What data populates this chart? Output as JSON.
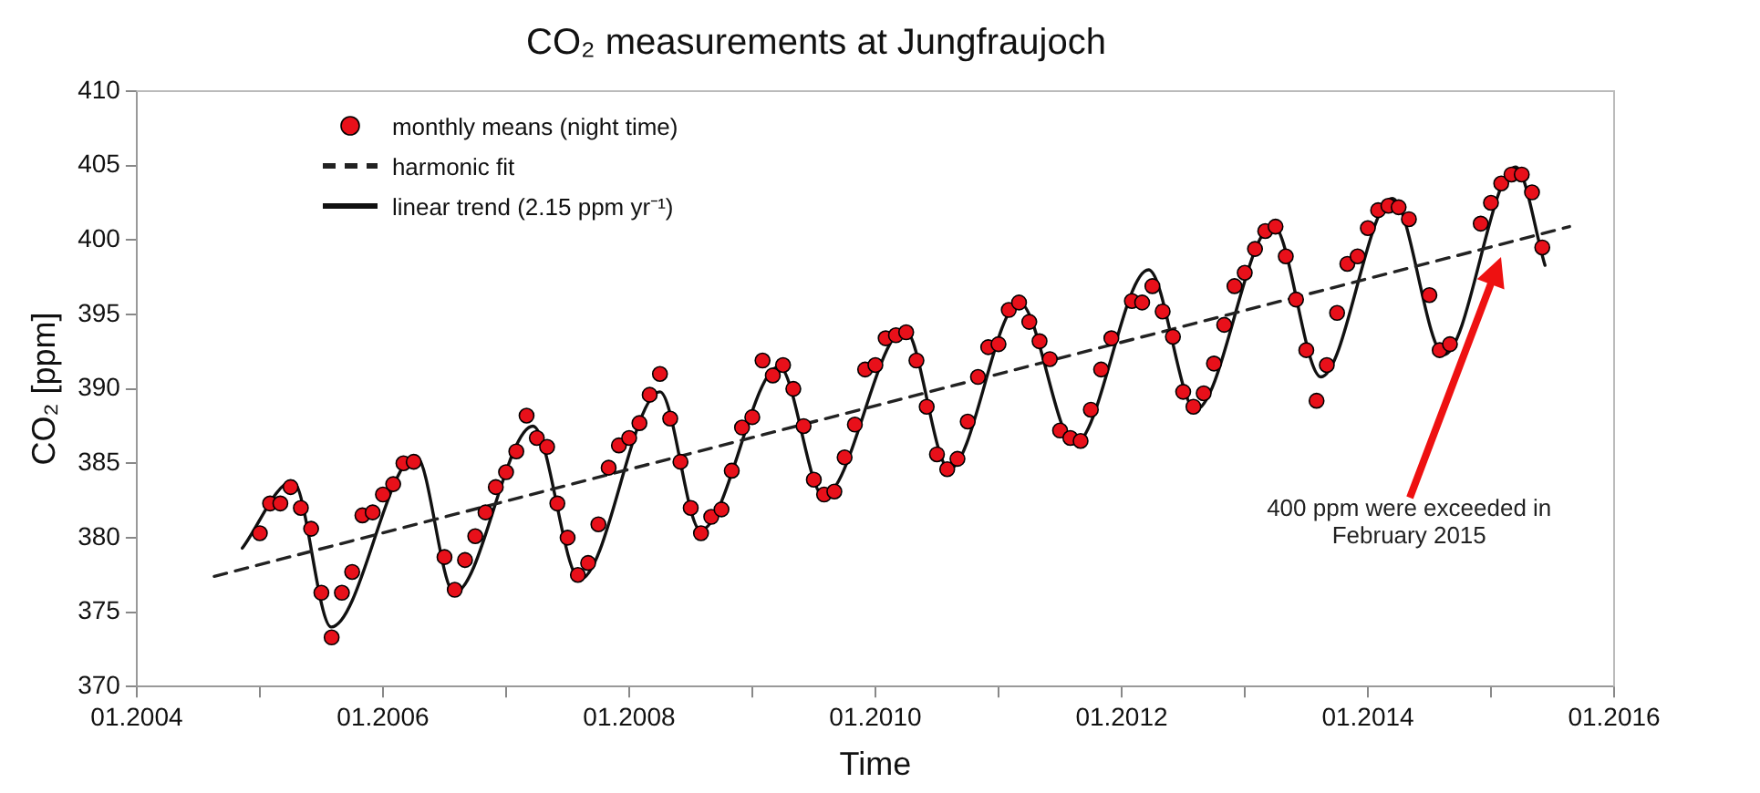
{
  "chart_data": {
    "type": "scatter",
    "title": "CO₂ measurements at Jungfraujoch",
    "xlabel": "Time",
    "ylabel": "CO₂ [ppm]",
    "xlim": [
      "2004-01",
      "2016-01"
    ],
    "xticks": [
      {
        "value": "2004-01",
        "label": "01.2004"
      },
      {
        "value": "2005-01",
        "label": null
      },
      {
        "value": "2006-01",
        "label": "01.2006"
      },
      {
        "value": "2007-01",
        "label": null
      },
      {
        "value": "2008-01",
        "label": "01.2008"
      },
      {
        "value": "2009-01",
        "label": null
      },
      {
        "value": "2010-01",
        "label": "01.2010"
      },
      {
        "value": "2011-01",
        "label": null
      },
      {
        "value": "2012-01",
        "label": "01.2012"
      },
      {
        "value": "2013-01",
        "label": null
      },
      {
        "value": "2014-01",
        "label": "01.2014"
      },
      {
        "value": "2015-01",
        "label": null
      },
      {
        "value": "2016-01",
        "label": "01.2016"
      }
    ],
    "ylim": [
      370,
      410
    ],
    "yticks": [
      370,
      375,
      380,
      385,
      390,
      395,
      400,
      405,
      410
    ],
    "legend": "top left",
    "series": [
      {
        "name": "monthly means (night time)",
        "marker": "circle",
        "color": "#e8101a",
        "x": [
          "2005-01",
          "2005-02",
          "2005-03",
          "2005-04",
          "2005-05",
          "2005-06",
          "2005-07",
          "2005-08",
          "2005-09",
          "2005-10",
          "2005-11",
          "2005-12",
          "2006-01",
          "2006-02",
          "2006-03",
          "2006-04",
          "2006-07",
          "2006-08",
          "2006-09",
          "2006-10",
          "2006-11",
          "2006-12",
          "2007-01",
          "2007-02",
          "2007-03",
          "2007-04",
          "2007-05",
          "2007-06",
          "2007-07",
          "2007-08",
          "2007-09",
          "2007-10",
          "2007-11",
          "2007-12",
          "2008-01",
          "2008-02",
          "2008-03",
          "2008-04",
          "2008-05",
          "2008-06",
          "2008-07",
          "2008-08",
          "2008-09",
          "2008-10",
          "2008-11",
          "2008-12",
          "2009-01",
          "2009-02",
          "2009-03",
          "2009-04",
          "2009-05",
          "2009-06",
          "2009-07",
          "2009-08",
          "2009-09",
          "2009-10",
          "2009-11",
          "2009-12",
          "2010-01",
          "2010-02",
          "2010-03",
          "2010-04",
          "2010-05",
          "2010-06",
          "2010-07",
          "2010-08",
          "2010-09",
          "2010-10",
          "2010-11",
          "2010-12",
          "2011-01",
          "2011-02",
          "2011-03",
          "2011-04",
          "2011-05",
          "2011-06",
          "2011-07",
          "2011-08",
          "2011-09",
          "2011-10",
          "2011-11",
          "2011-12",
          "2012-02",
          "2012-03",
          "2012-04",
          "2012-05",
          "2012-06",
          "2012-07",
          "2012-08",
          "2012-09",
          "2012-10",
          "2012-11",
          "2012-12",
          "2013-01",
          "2013-02",
          "2013-03",
          "2013-04",
          "2013-05",
          "2013-06",
          "2013-07",
          "2013-08",
          "2013-09",
          "2013-10",
          "2013-11",
          "2013-12",
          "2014-01",
          "2014-02",
          "2014-03",
          "2014-04",
          "2014-05",
          "2014-07",
          "2014-08",
          "2014-09",
          "2014-12",
          "2015-01",
          "2015-02",
          "2015-03",
          "2015-04",
          "2015-05",
          "2015-06"
        ],
        "values": [
          380.3,
          382.3,
          382.3,
          383.4,
          382.0,
          380.6,
          376.3,
          373.3,
          376.3,
          377.7,
          381.5,
          381.7,
          382.9,
          383.6,
          385.0,
          385.1,
          378.7,
          376.5,
          378.5,
          380.1,
          381.7,
          383.4,
          384.4,
          385.8,
          388.2,
          386.7,
          386.1,
          382.3,
          380.0,
          377.5,
          378.3,
          380.9,
          384.7,
          386.2,
          386.7,
          387.7,
          389.6,
          391.0,
          388.0,
          385.1,
          382.0,
          380.3,
          381.4,
          381.9,
          384.5,
          387.4,
          388.1,
          391.9,
          390.9,
          391.6,
          390.0,
          387.5,
          383.9,
          382.9,
          383.1,
          385.4,
          387.6,
          391.3,
          391.6,
          393.4,
          393.6,
          393.8,
          391.9,
          388.8,
          385.6,
          384.6,
          385.3,
          387.8,
          390.8,
          392.8,
          393.0,
          395.3,
          395.8,
          394.5,
          393.2,
          392.0,
          387.2,
          386.7,
          386.5,
          388.6,
          391.3,
          393.4,
          395.9,
          395.8,
          396.9,
          395.2,
          393.5,
          389.8,
          388.8,
          389.7,
          391.7,
          394.3,
          396.9,
          397.8,
          399.4,
          400.6,
          400.9,
          398.9,
          396.0,
          392.6,
          389.2,
          391.6,
          395.1,
          398.4,
          398.9,
          400.8,
          402.0,
          402.3,
          402.2,
          401.4,
          396.3,
          392.6,
          393.0,
          401.1,
          402.5,
          403.8,
          404.4,
          404.4,
          403.2,
          399.5
        ]
      },
      {
        "name": "harmonic fit",
        "type": "line",
        "line_style": "dashed",
        "color": "#222222",
        "x": [
          "2004-08-18",
          "2015-08-21"
        ],
        "values": [
          377.4,
          400.9
        ]
      },
      {
        "name": "linear trend (2.15 ppm yr⁻¹)",
        "type": "line",
        "line_style": "solid",
        "color": "#111111",
        "x": [
          "2004-11-10",
          "2005-04-08",
          "2005-07-30",
          "2006-04-08",
          "2006-07-30",
          "2007-03-20",
          "2007-08-07",
          "2008-04-01",
          "2008-07-30",
          "2009-03-20",
          "2009-07-30",
          "2010-03-27",
          "2010-08-07",
          "2011-03-02",
          "2011-08-14",
          "2012-03-20",
          "2012-08-07",
          "2013-03-24",
          "2013-08-14",
          "2014-03-13",
          "2014-08-14",
          "2015-03-13",
          "2015-06-09"
        ],
        "values": [
          379.3,
          383.8,
          374.0,
          385.5,
          376.3,
          387.5,
          377.2,
          389.8,
          380.5,
          391.5,
          382.8,
          394.0,
          384.6,
          395.8,
          386.3,
          398.0,
          388.6,
          401.0,
          390.8,
          402.8,
          392.3,
          404.9,
          398.3
        ]
      }
    ],
    "annotations": [
      "400 ppm were exceeded in February 2015"
    ]
  }
}
